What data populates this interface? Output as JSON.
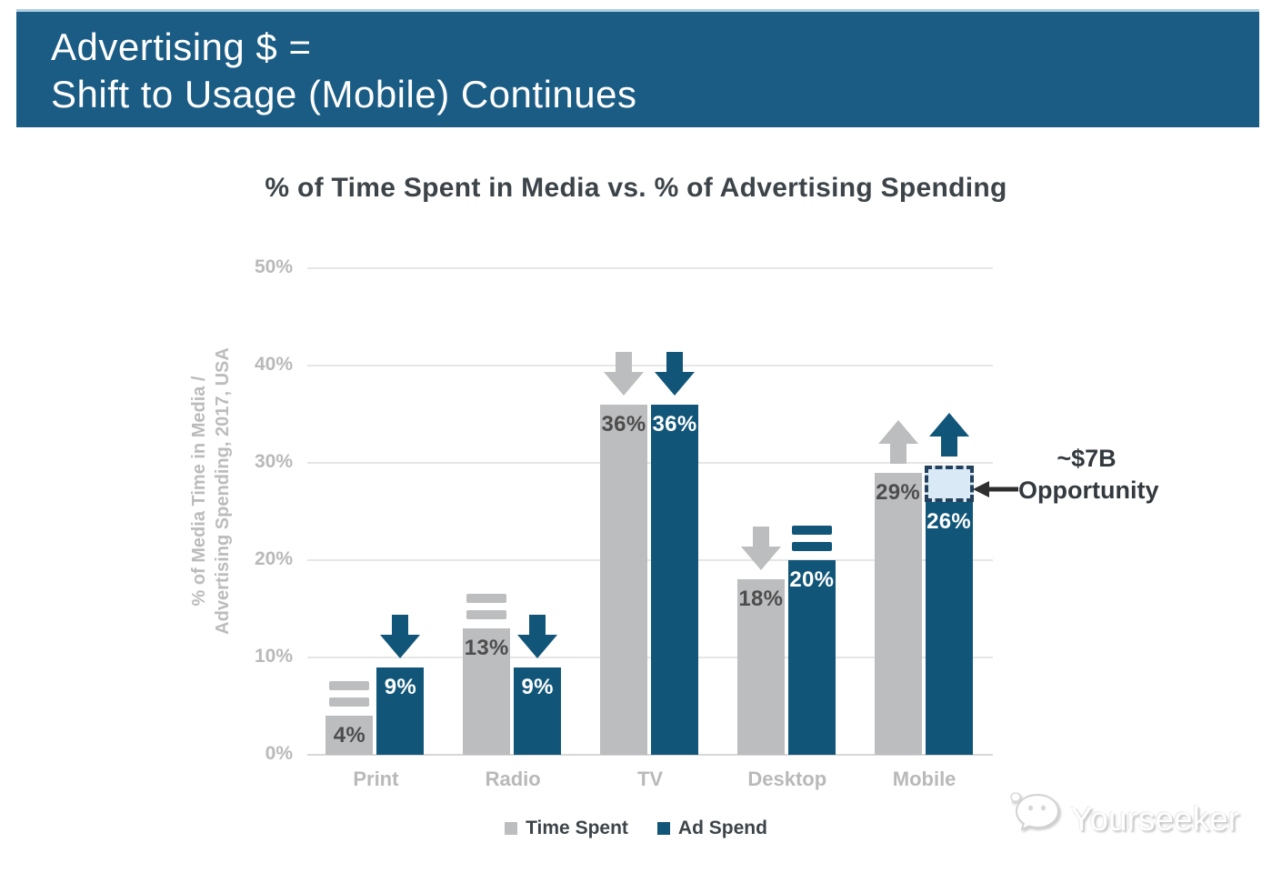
{
  "header": {
    "line1": "Advertising $ =",
    "line2": "Shift to Usage (Mobile) Continues",
    "bg_color": "#1b5c84",
    "text_color": "#ffffff"
  },
  "chart_data": {
    "type": "bar",
    "title": "% of Time Spent in Media vs. % of Advertising Spending",
    "ylabel_line1": "% of Media Time in Media /",
    "ylabel_line2": "Advertising Spending, 2017, USA",
    "ylim": [
      0,
      50
    ],
    "yticks": [
      {
        "value": 0,
        "label": "0%"
      },
      {
        "value": 10,
        "label": "10%"
      },
      {
        "value": 20,
        "label": "20%"
      },
      {
        "value": 30,
        "label": "30%"
      },
      {
        "value": 40,
        "label": "40%"
      },
      {
        "value": 50,
        "label": "50%"
      }
    ],
    "grid": "horizontal",
    "legend_position": "bottom",
    "categories": [
      "Print",
      "Radio",
      "TV",
      "Desktop",
      "Mobile"
    ],
    "series": [
      {
        "name": "Time Spent",
        "color": "#bcbdbf",
        "label_color": "#4d4d4d",
        "values": [
          4,
          13,
          36,
          18,
          29
        ],
        "trends": [
          "equal",
          "equal",
          "down",
          "down",
          "up"
        ]
      },
      {
        "name": "Ad Spend",
        "color": "#115679",
        "label_color": "#ffffff",
        "values": [
          9,
          9,
          36,
          20,
          26
        ],
        "trends": [
          "down",
          "down",
          "down",
          "equal",
          "up"
        ]
      }
    ],
    "value_label_format": "{v}%",
    "annotation": {
      "line1": "~$7B",
      "line2": "Opportunity",
      "box": {
        "category": "Mobile",
        "series": "Ad Spend",
        "value_from": 26,
        "value_to": 29.7,
        "fill": "#d9eaf6",
        "border": "#23415c"
      },
      "arrow_color": "#2f2f2f"
    }
  },
  "watermark": {
    "text": "Yourseeker",
    "icon": "wechat-chat-bubbles-icon"
  },
  "colors": {
    "banner_blue": "#1b5c84",
    "bar_blue": "#115679",
    "bar_gray": "#bcbdbf",
    "gridline": "#e6e6e6",
    "axis_text": "#b9b9b9",
    "title_text": "#3d4449",
    "annotation_text": "#33393e"
  }
}
